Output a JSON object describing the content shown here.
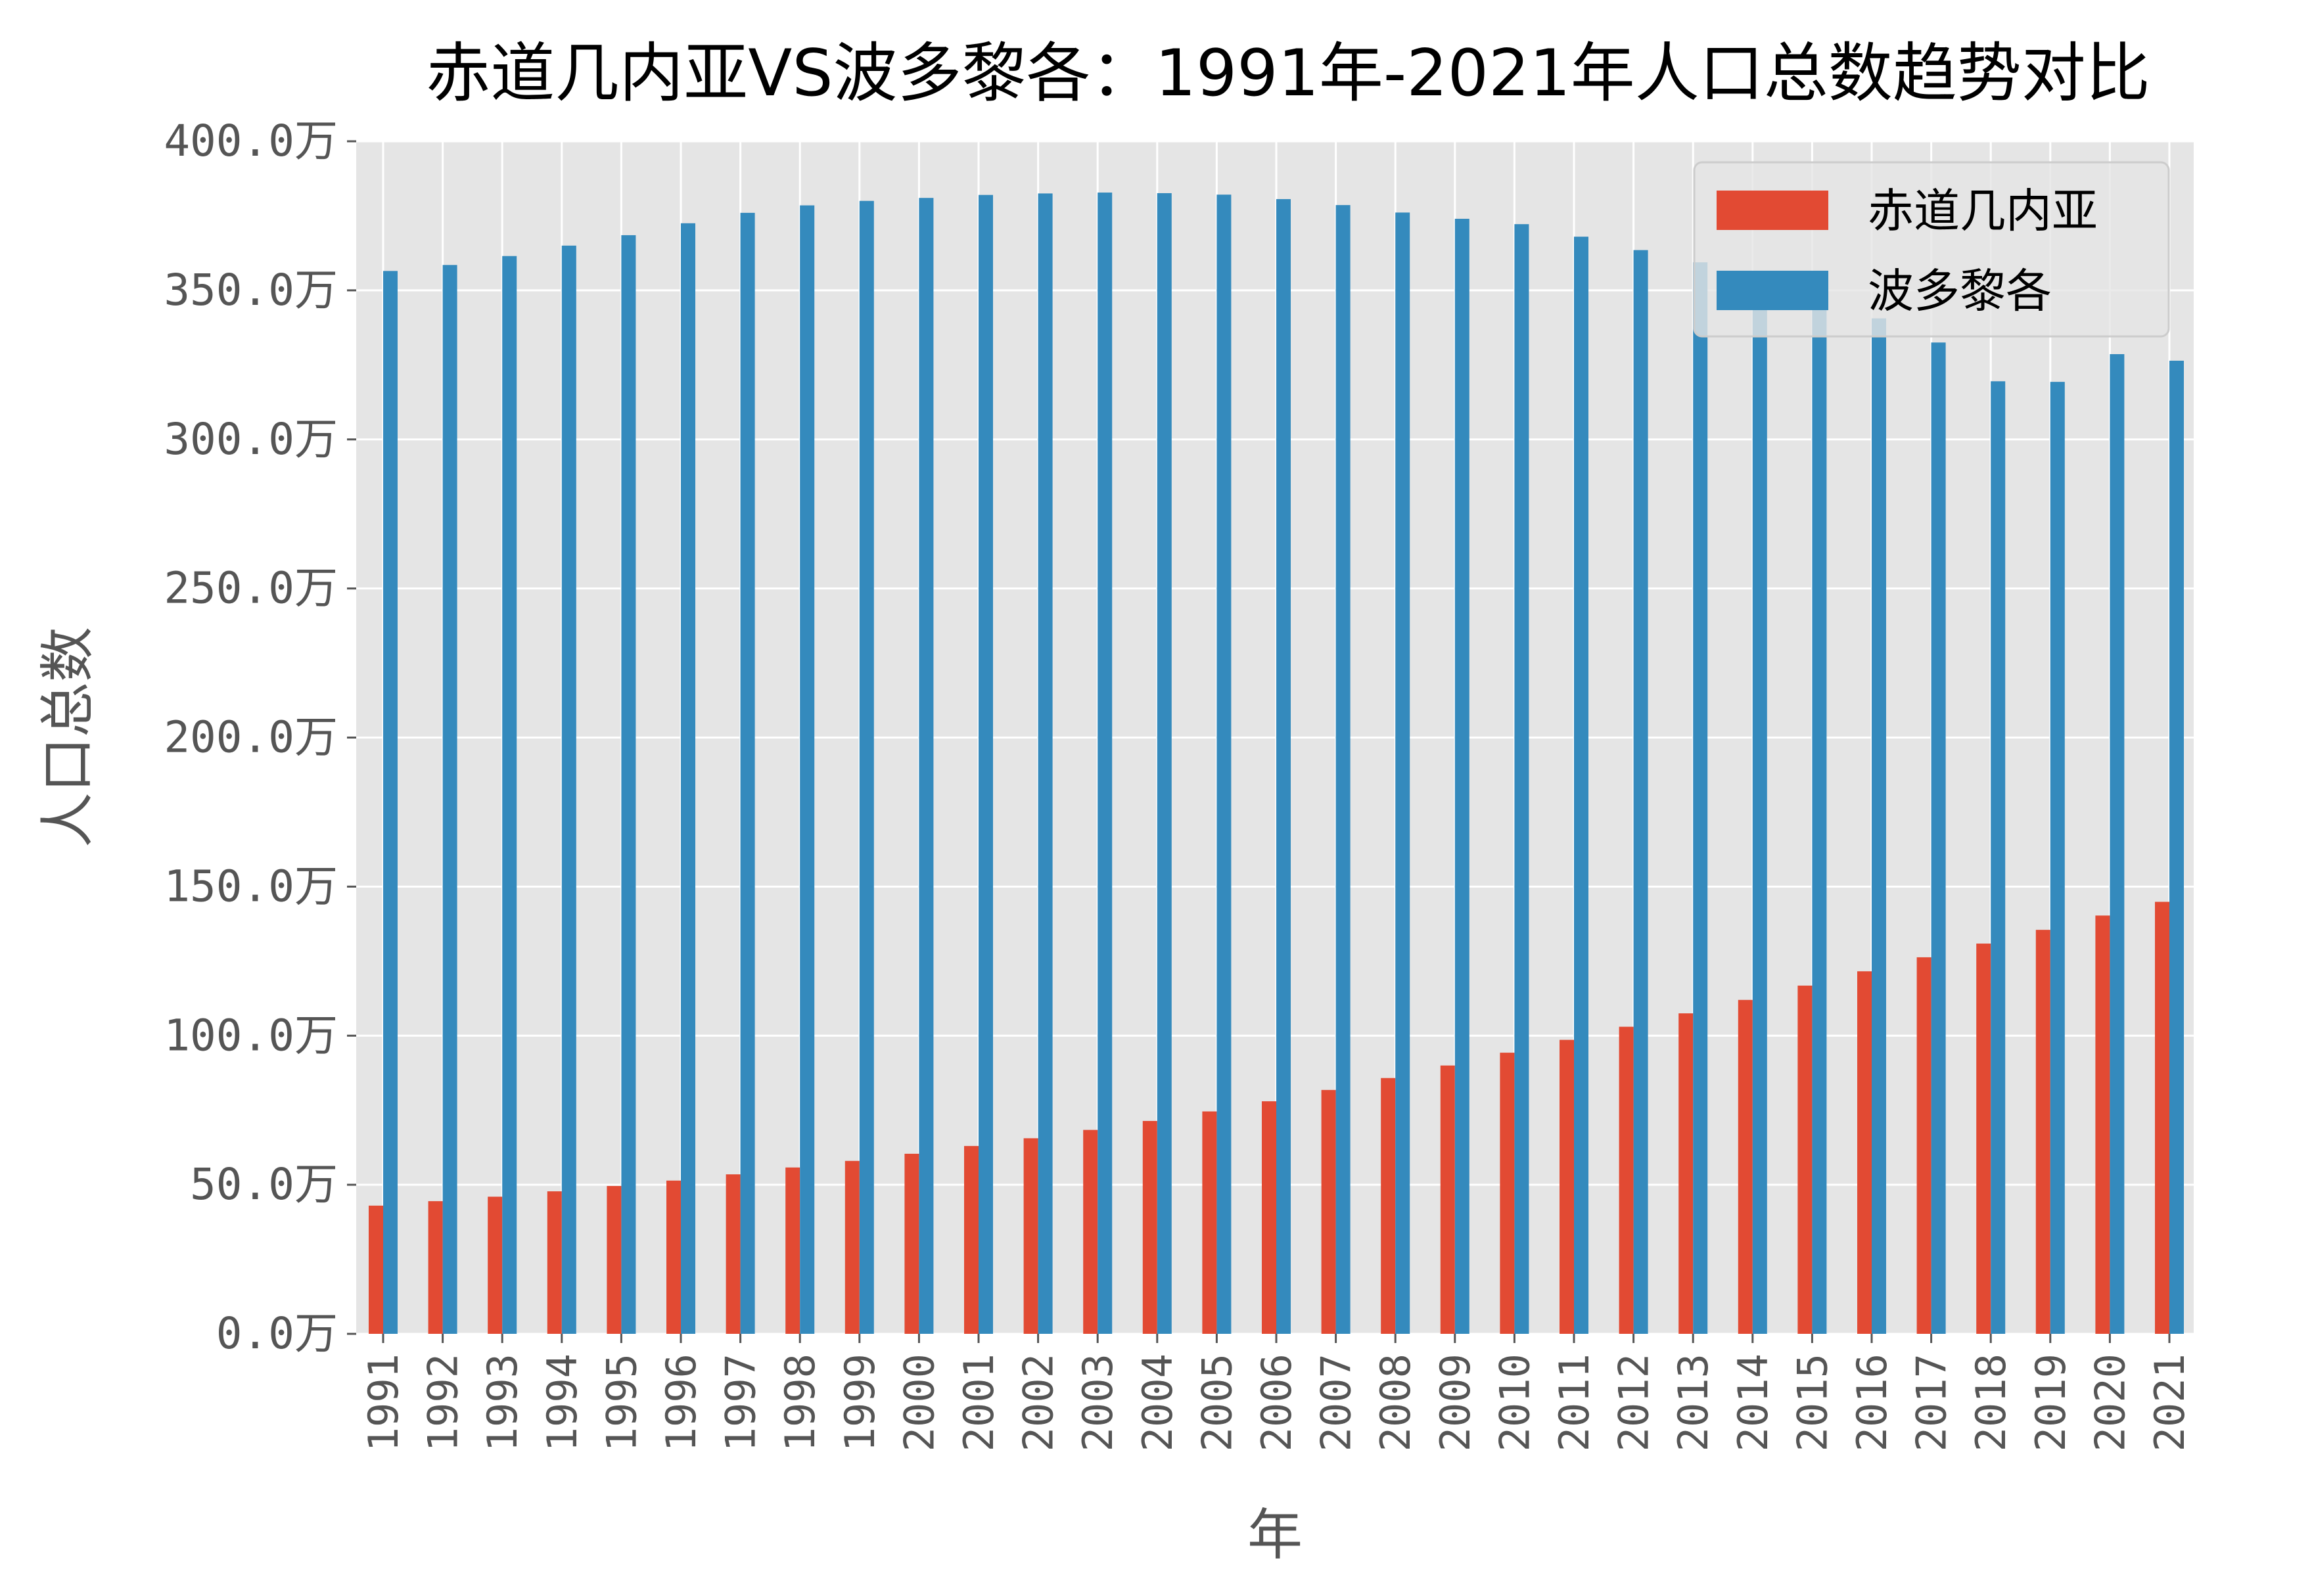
{
  "chart_data": {
    "type": "bar",
    "title": "赤道几内亚VS波多黎各：1991年-2021年人口总数趋势对比",
    "xlabel": "年",
    "ylabel": "人口总数",
    "y_unit_suffix": "万",
    "ylim": [
      0,
      400
    ],
    "yticks": [
      "0.0万",
      "50.0万",
      "100.0万",
      "150.0万",
      "200.0万",
      "250.0万",
      "300.0万",
      "350.0万",
      "400.0万"
    ],
    "categories": [
      "1991",
      "1992",
      "1993",
      "1994",
      "1995",
      "1996",
      "1997",
      "1998",
      "1999",
      "2000",
      "2001",
      "2002",
      "2003",
      "2004",
      "2005",
      "2006",
      "2007",
      "2008",
      "2009",
      "2010",
      "2011",
      "2012",
      "2013",
      "2014",
      "2015",
      "2016",
      "2017",
      "2018",
      "2019",
      "2020",
      "2021"
    ],
    "series": [
      {
        "name": "赤道几内亚",
        "color": "#E24A33",
        "values": [
          43.0,
          44.5,
          46.0,
          47.8,
          49.6,
          51.4,
          53.5,
          55.8,
          58.0,
          60.4,
          63.0,
          65.6,
          68.4,
          71.4,
          74.6,
          78.0,
          81.8,
          85.8,
          90.0,
          94.3,
          98.6,
          103.0,
          107.5,
          112.0,
          116.8,
          121.6,
          126.3,
          130.9,
          135.5,
          140.3,
          144.9
        ]
      },
      {
        "name": "波多黎各",
        "color": "#348ABD",
        "values": [
          356.5,
          358.5,
          361.5,
          365.0,
          368.5,
          372.5,
          376.0,
          378.5,
          380.0,
          381.0,
          382.0,
          382.5,
          382.8,
          382.6,
          382.1,
          380.6,
          378.6,
          376.1,
          374.0,
          372.2,
          368.0,
          363.5,
          359.4,
          353.5,
          347.4,
          340.6,
          332.5,
          319.5,
          319.3,
          328.6,
          326.4
        ]
      }
    ],
    "legend_position": "top-right",
    "grid": true,
    "background": "#E5E5E5"
  }
}
